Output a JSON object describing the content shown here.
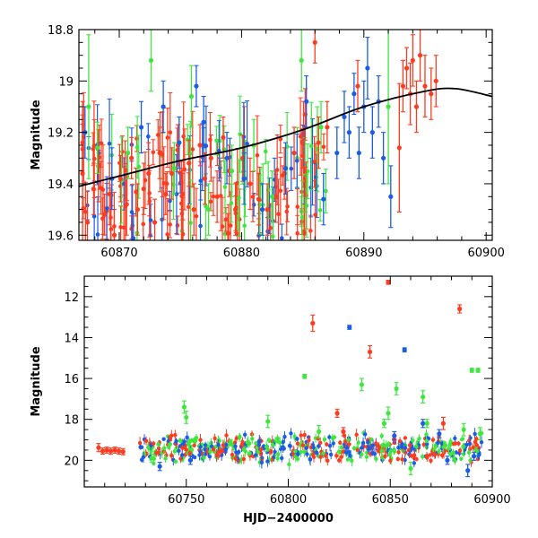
{
  "chart_data": [
    {
      "type": "scatter",
      "title": "",
      "xlabel": "",
      "ylabel": "Magnitude",
      "xlim": [
        60866.7,
        60900.5
      ],
      "ylim": [
        19.62,
        18.8
      ],
      "y_inverted": true,
      "x_ticks": [
        60870,
        60880,
        60890,
        60900
      ],
      "y_ticks": [
        18.8,
        19,
        19.2,
        19.4,
        19.6
      ],
      "grid": false,
      "series_colors": {
        "red": "#ff3b1f",
        "blue": "#1a5ce6",
        "green": "#3ee63e",
        "model": "#000000"
      },
      "series": [
        {
          "color_key": "red",
          "points": [
            [
              60867.0,
              19.36,
              0.28
            ],
            [
              60867.4,
              19.55,
              0.12
            ],
            [
              60867.9,
              19.42,
              0.1
            ],
            [
              60868.3,
              19.33,
              0.14
            ],
            [
              60868.8,
              19.52,
              0.08
            ],
            [
              60869.2,
              19.44,
              0.12
            ],
            [
              60869.6,
              19.6,
              0.1
            ],
            [
              60870.1,
              19.38,
              0.09
            ],
            [
              60870.6,
              19.48,
              0.12
            ],
            [
              60871.0,
              19.3,
              0.08
            ],
            [
              60871.5,
              19.5,
              0.1
            ],
            [
              60872.0,
              19.42,
              0.1
            ],
            [
              60872.4,
              19.36,
              0.12
            ],
            [
              60872.9,
              19.55,
              0.09
            ],
            [
              60873.3,
              19.28,
              0.1
            ],
            [
              60873.8,
              19.44,
              0.08
            ],
            [
              60874.3,
              19.36,
              0.1
            ],
            [
              60874.8,
              19.25,
              0.08
            ],
            [
              60875.2,
              19.44,
              0.1
            ],
            [
              60875.7,
              19.32,
              0.09
            ],
            [
              60876.1,
              19.5,
              0.1
            ],
            [
              60876.6,
              19.25,
              0.08
            ],
            [
              60877.0,
              19.38,
              0.1
            ],
            [
              60877.5,
              19.3,
              0.09
            ],
            [
              60878.0,
              19.45,
              0.1
            ],
            [
              60878.5,
              19.22,
              0.08
            ],
            [
              60879.0,
              19.35,
              0.1
            ],
            [
              60879.5,
              19.5,
              0.1
            ],
            [
              60880.1,
              19.3,
              0.09
            ],
            [
              60880.7,
              19.4,
              0.1
            ],
            [
              60881.4,
              19.46,
              0.1
            ],
            [
              60882.1,
              19.5,
              0.1
            ],
            [
              60882.8,
              19.45,
              0.1
            ],
            [
              60883.5,
              19.36,
              0.1
            ],
            [
              60884.3,
              19.28,
              0.1
            ],
            [
              60885.2,
              19.13,
              0.1
            ],
            [
              60886.0,
              18.85,
              0.08
            ],
            [
              60886.3,
              19.24,
              0.1
            ],
            [
              60887.0,
              19.18,
              0.1
            ],
            [
              60889.5,
              19.02,
              0.1
            ],
            [
              60892.9,
              19.26,
              0.25
            ],
            [
              60893.2,
              19.02,
              0.1
            ],
            [
              60893.5,
              18.95,
              0.08
            ],
            [
              60893.8,
              19.05,
              0.12
            ],
            [
              60894.0,
              18.92,
              0.1
            ],
            [
              60894.3,
              19.1,
              0.1
            ],
            [
              60894.6,
              18.9,
              0.1
            ],
            [
              60895.0,
              19.02,
              0.12
            ],
            [
              60895.5,
              19.05,
              0.1
            ],
            [
              60895.9,
              19.0,
              0.1
            ]
          ]
        },
        {
          "color_key": "blue",
          "points": [
            [
              60867.2,
              19.2,
              0.1
            ],
            [
              60869.4,
              19.38,
              0.12
            ],
            [
              60871.8,
              19.18,
              0.1
            ],
            [
              60873.6,
              19.1,
              0.1
            ],
            [
              60874.9,
              19.24,
              0.1
            ],
            [
              60876.3,
              19.02,
              0.08
            ],
            [
              60876.9,
              19.16,
              0.1
            ],
            [
              60878.8,
              19.3,
              0.1
            ],
            [
              60880.2,
              19.38,
              0.1
            ],
            [
              60881.7,
              19.5,
              0.1
            ],
            [
              60883.6,
              19.34,
              0.1
            ],
            [
              60885.3,
              19.08,
              0.1
            ],
            [
              60886.7,
              19.46,
              0.1
            ],
            [
              60887.8,
              19.28,
              0.1
            ],
            [
              60888.4,
              19.14,
              0.1
            ],
            [
              60888.8,
              19.2,
              0.1
            ],
            [
              60889.2,
              19.05,
              0.08
            ],
            [
              60889.6,
              19.28,
              0.1
            ],
            [
              60890.0,
              19.1,
              0.1
            ],
            [
              60890.3,
              18.95,
              0.12
            ],
            [
              60890.7,
              19.2,
              0.1
            ],
            [
              60891.2,
              19.08,
              0.1
            ],
            [
              60891.6,
              19.3,
              0.1
            ],
            [
              60892.2,
              19.45,
              0.12
            ]
          ]
        },
        {
          "color_key": "green",
          "points": [
            [
              60867.5,
              19.1,
              0.28
            ],
            [
              60868.2,
              19.26,
              0.1
            ],
            [
              60870.7,
              19.28,
              0.1
            ],
            [
              60872.6,
              18.92,
              0.12
            ],
            [
              60874.5,
              19.34,
              0.1
            ],
            [
              60875.9,
              19.06,
              0.12
            ],
            [
              60877.3,
              19.5,
              0.1
            ],
            [
              60879.2,
              19.35,
              0.1
            ],
            [
              60881.0,
              19.25,
              0.1
            ],
            [
              60882.5,
              19.45,
              0.1
            ],
            [
              60884.9,
              18.92,
              0.12
            ],
            [
              60886.5,
              19.18,
              0.1
            ],
            [
              60892.0,
              19.1,
              0.3
            ]
          ]
        },
        {
          "color_key": "model",
          "kind": "line",
          "points": [
            [
              60866.7,
              19.41
            ],
            [
              60870,
              19.37
            ],
            [
              60875,
              19.31
            ],
            [
              60880,
              19.26
            ],
            [
              60885,
              19.19
            ],
            [
              60890,
              19.1
            ],
            [
              60895,
              19.04
            ],
            [
              60897.5,
              19.03
            ],
            [
              60900.5,
              19.06
            ]
          ]
        }
      ]
    },
    {
      "type": "scatter",
      "title": "",
      "xlabel": "HJD−2400000",
      "ylabel": "Magnitude",
      "xlim": [
        60700,
        60900
      ],
      "ylim": [
        21.3,
        11
      ],
      "y_inverted": true,
      "x_ticks": [
        60750,
        60800,
        60850,
        60900
      ],
      "y_ticks": [
        12,
        14,
        16,
        18,
        20
      ],
      "grid": false,
      "series_colors": {
        "red": "#ff3b1f",
        "blue": "#1a5ce6",
        "green": "#3ee63e"
      },
      "baseline": {
        "x_range": [
          60727,
          60895
        ],
        "mag": 19.45,
        "colors": [
          "green",
          "blue",
          "red"
        ]
      },
      "series": [
        {
          "color_key": "red",
          "points": [
            [
              60707,
              19.38,
              0.2
            ],
            [
              60709,
              19.55,
              0.15
            ],
            [
              60711,
              19.5,
              0.15
            ],
            [
              60713,
              19.55,
              0.15
            ],
            [
              60715,
              19.5,
              0.15
            ],
            [
              60717,
              19.55,
              0.15
            ],
            [
              60719,
              19.58,
              0.15
            ],
            [
              60812,
              13.3,
              0.4
            ],
            [
              60824,
              17.7,
              0.2
            ],
            [
              60827,
              18.6,
              0.2
            ],
            [
              60840,
              14.7,
              0.3
            ],
            [
              60849,
              11.3,
              0.1
            ],
            [
              60852,
              19.0,
              0.2
            ],
            [
              60876,
              18.2,
              0.3
            ],
            [
              60884,
              12.6,
              0.2
            ]
          ]
        },
        {
          "color_key": "blue",
          "points": [
            [
              60737,
              20.3,
              0.2
            ],
            [
              60752,
              20.0,
              0.2
            ],
            [
              60830,
              13.5,
              0.1
            ],
            [
              60852,
              18.8,
              0.2
            ],
            [
              60857,
              14.6,
              0.1
            ],
            [
              60866,
              18.2,
              0.2
            ],
            [
              60874,
              18.7,
              0.2
            ],
            [
              60878,
              20.0,
              0.2
            ],
            [
              60888,
              20.5,
              0.3
            ],
            [
              60891,
              19.8,
              0.2
            ]
          ]
        },
        {
          "color_key": "green",
          "points": [
            [
              60733,
              19.9,
              0.2
            ],
            [
              60749,
              17.4,
              0.3
            ],
            [
              60750,
              17.9,
              0.3
            ],
            [
              60790,
              18.1,
              0.3
            ],
            [
              60808,
              15.9,
              0.1
            ],
            [
              60815,
              18.6,
              0.3
            ],
            [
              60836,
              16.3,
              0.3
            ],
            [
              60847,
              18.2,
              0.2
            ],
            [
              60849,
              17.7,
              0.3
            ],
            [
              60853,
              16.5,
              0.3
            ],
            [
              60860,
              20.4,
              0.3
            ],
            [
              60866,
              16.9,
              0.3
            ],
            [
              60868,
              18.2,
              0.2
            ],
            [
              60886,
              18.5,
              0.3
            ],
            [
              60890,
              15.6,
              0.1
            ],
            [
              60893,
              15.6,
              0.1
            ],
            [
              60894,
              18.7,
              0.3
            ]
          ]
        }
      ]
    }
  ]
}
